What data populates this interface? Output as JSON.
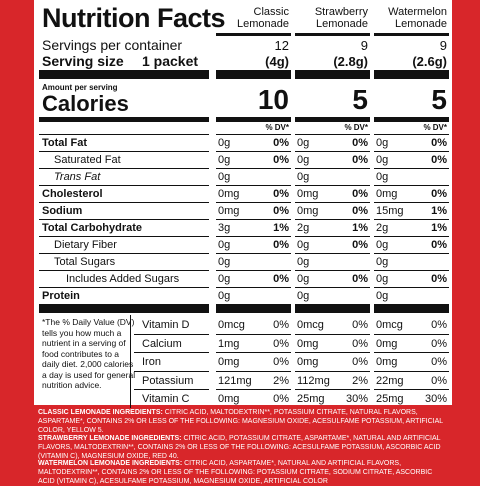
{
  "title": "Nutrition Facts",
  "columns": [
    {
      "name": "Classic Lemonade",
      "name_line1": "Classic",
      "name_line2": "Lemonade",
      "servings": "12",
      "serving_size": "(4g)",
      "calories": "10"
    },
    {
      "name": "Strawberry Lemonade",
      "name_line1": "Strawberry",
      "name_line2": "Lemonade",
      "servings": "9",
      "serving_size": "(2.8g)",
      "calories": "5"
    },
    {
      "name": "Watermelon Lemonade",
      "name_line1": "Watermelon",
      "name_line2": "Lemonade",
      "servings": "9",
      "serving_size": "(2.6g)",
      "calories": "5"
    }
  ],
  "servings_label": "Servings per container",
  "serving_size_label": "Serving size",
  "serving_size_unit": "1 packet",
  "amount_per_serving": "Amount per serving",
  "calories_label": "Calories",
  "dv_header": "% DV*",
  "nutrients": [
    {
      "label": "Total Fat",
      "bold": true,
      "indent": 0,
      "italic": false,
      "values": [
        [
          "0g",
          "0%"
        ],
        [
          "0g",
          "0%"
        ],
        [
          "0g",
          "0%"
        ]
      ]
    },
    {
      "label": "Saturated Fat",
      "bold": false,
      "indent": 1,
      "italic": false,
      "values": [
        [
          "0g",
          "0%"
        ],
        [
          "0g",
          "0%"
        ],
        [
          "0g",
          "0%"
        ]
      ]
    },
    {
      "label": "Trans Fat",
      "bold": false,
      "indent": 1,
      "italic": true,
      "values": [
        [
          "0g",
          ""
        ],
        [
          "0g",
          ""
        ],
        [
          "0g",
          ""
        ]
      ]
    },
    {
      "label": "Cholesterol",
      "bold": true,
      "indent": 0,
      "italic": false,
      "values": [
        [
          "0mg",
          "0%"
        ],
        [
          "0mg",
          "0%"
        ],
        [
          "0mg",
          "0%"
        ]
      ]
    },
    {
      "label": "Sodium",
      "bold": true,
      "indent": 0,
      "italic": false,
      "values": [
        [
          "0mg",
          "0%"
        ],
        [
          "0mg",
          "0%"
        ],
        [
          "15mg",
          "1%"
        ]
      ]
    },
    {
      "label": "Total Carbohydrate",
      "bold": true,
      "indent": 0,
      "italic": false,
      "values": [
        [
          "3g",
          "1%"
        ],
        [
          "2g",
          "1%"
        ],
        [
          "2g",
          "1%"
        ]
      ]
    },
    {
      "label": "Dietary Fiber",
      "bold": false,
      "indent": 1,
      "italic": false,
      "values": [
        [
          "0g",
          "0%"
        ],
        [
          "0g",
          "0%"
        ],
        [
          "0g",
          "0%"
        ]
      ]
    },
    {
      "label": "Total Sugars",
      "bold": false,
      "indent": 1,
      "italic": false,
      "values": [
        [
          "0g",
          ""
        ],
        [
          "0g",
          ""
        ],
        [
          "0g",
          ""
        ]
      ]
    },
    {
      "label": "Includes Added Sugars",
      "bold": false,
      "indent": 2,
      "italic": false,
      "values": [
        [
          "0g",
          "0%"
        ],
        [
          "0g",
          "0%"
        ],
        [
          "0g",
          "0%"
        ]
      ]
    },
    {
      "label": "Protein",
      "bold": true,
      "indent": 0,
      "italic": false,
      "values": [
        [
          "0g",
          ""
        ],
        [
          "0g",
          ""
        ],
        [
          "0g",
          ""
        ]
      ]
    }
  ],
  "footnote": "*The % Daily Value (DV) tells you how much a nutrient in a serving of food contributes to a daily diet. 2,000 calories a day is used for general nutrition advice.",
  "footnote_lines": [
    "*The % Daily Value (DV)",
    "tells you how much a",
    "nutrient in a serving of",
    "food contributes to a",
    "daily diet. 2,000 calories",
    "a day is used for general",
    "nutrition advice."
  ],
  "vitamins": [
    {
      "label": "Vitamin D",
      "values": [
        [
          "0mcg",
          "0%"
        ],
        [
          "0mcg",
          "0%"
        ],
        [
          "0mcg",
          "0%"
        ]
      ]
    },
    {
      "label": "Calcium",
      "values": [
        [
          "1mg",
          "0%"
        ],
        [
          "0mg",
          "0%"
        ],
        [
          "0mg",
          "0%"
        ]
      ]
    },
    {
      "label": "Iron",
      "values": [
        [
          "0mg",
          "0%"
        ],
        [
          "0mg",
          "0%"
        ],
        [
          "0mg",
          "0%"
        ]
      ]
    },
    {
      "label": "Potassium",
      "values": [
        [
          "121mg",
          "2%"
        ],
        [
          "112mg",
          "2%"
        ],
        [
          "22mg",
          "0%"
        ]
      ]
    },
    {
      "label": "Vitamin C",
      "values": [
        [
          "0mg",
          "0%"
        ],
        [
          "25mg",
          "30%"
        ],
        [
          "25mg",
          "30%"
        ]
      ]
    }
  ],
  "ingredients": [
    {
      "heading": "CLASSIC LEMONADE INGREDIENTS:",
      "text": "CITRIC ACID, MALTODEXTRIN**, POTASSIUM CITRATE, NATURAL FLAVORS, ASPARTAME*, CONTAINS 2% OR LESS OF THE FOLLOWING: MAGNESIUM OXIDE, ACESULFAME POTASSIUM, ARTIFICIAL COLOR, YELLOW 5."
    },
    {
      "heading": "STRAWBERRY LEMONADE INGREDIENTS:",
      "text": "CITRIC ACID, POTASSIUM CITRATE, ASPARTAME*, NATURAL AND ARTIFICIAL FLAVORS, MALTODEXTRIN**, CONTAINS 2% OR LESS OF THE FOLLOWING: ACESULFAME POTASSIUM, ASCORBIC ACID (VITAMIN C), MAGNESIUM OXIDE, RED 40."
    },
    {
      "heading": "WATERMELON LEMONADE INGREDIENTS:",
      "text": "CITRIC ACID, ASPARTAME*, NATURAL AND ARTIFICIAL FLAVORS, MALTODEXTRIN**, CONTAINS 2% OR LESS OF THE FOLLOWING: POTASSIUM CITRATE, SODIUM CITRATE, ASCORBIC ACID (VITAMIN C), ACESULFAME POTASSIUM, MAGNESIUM OXIDE, ARTIFICIAL COLOR"
    }
  ],
  "colors": {
    "background": "#d8262a",
    "panel": "#ffffff",
    "ink": "#111111"
  }
}
